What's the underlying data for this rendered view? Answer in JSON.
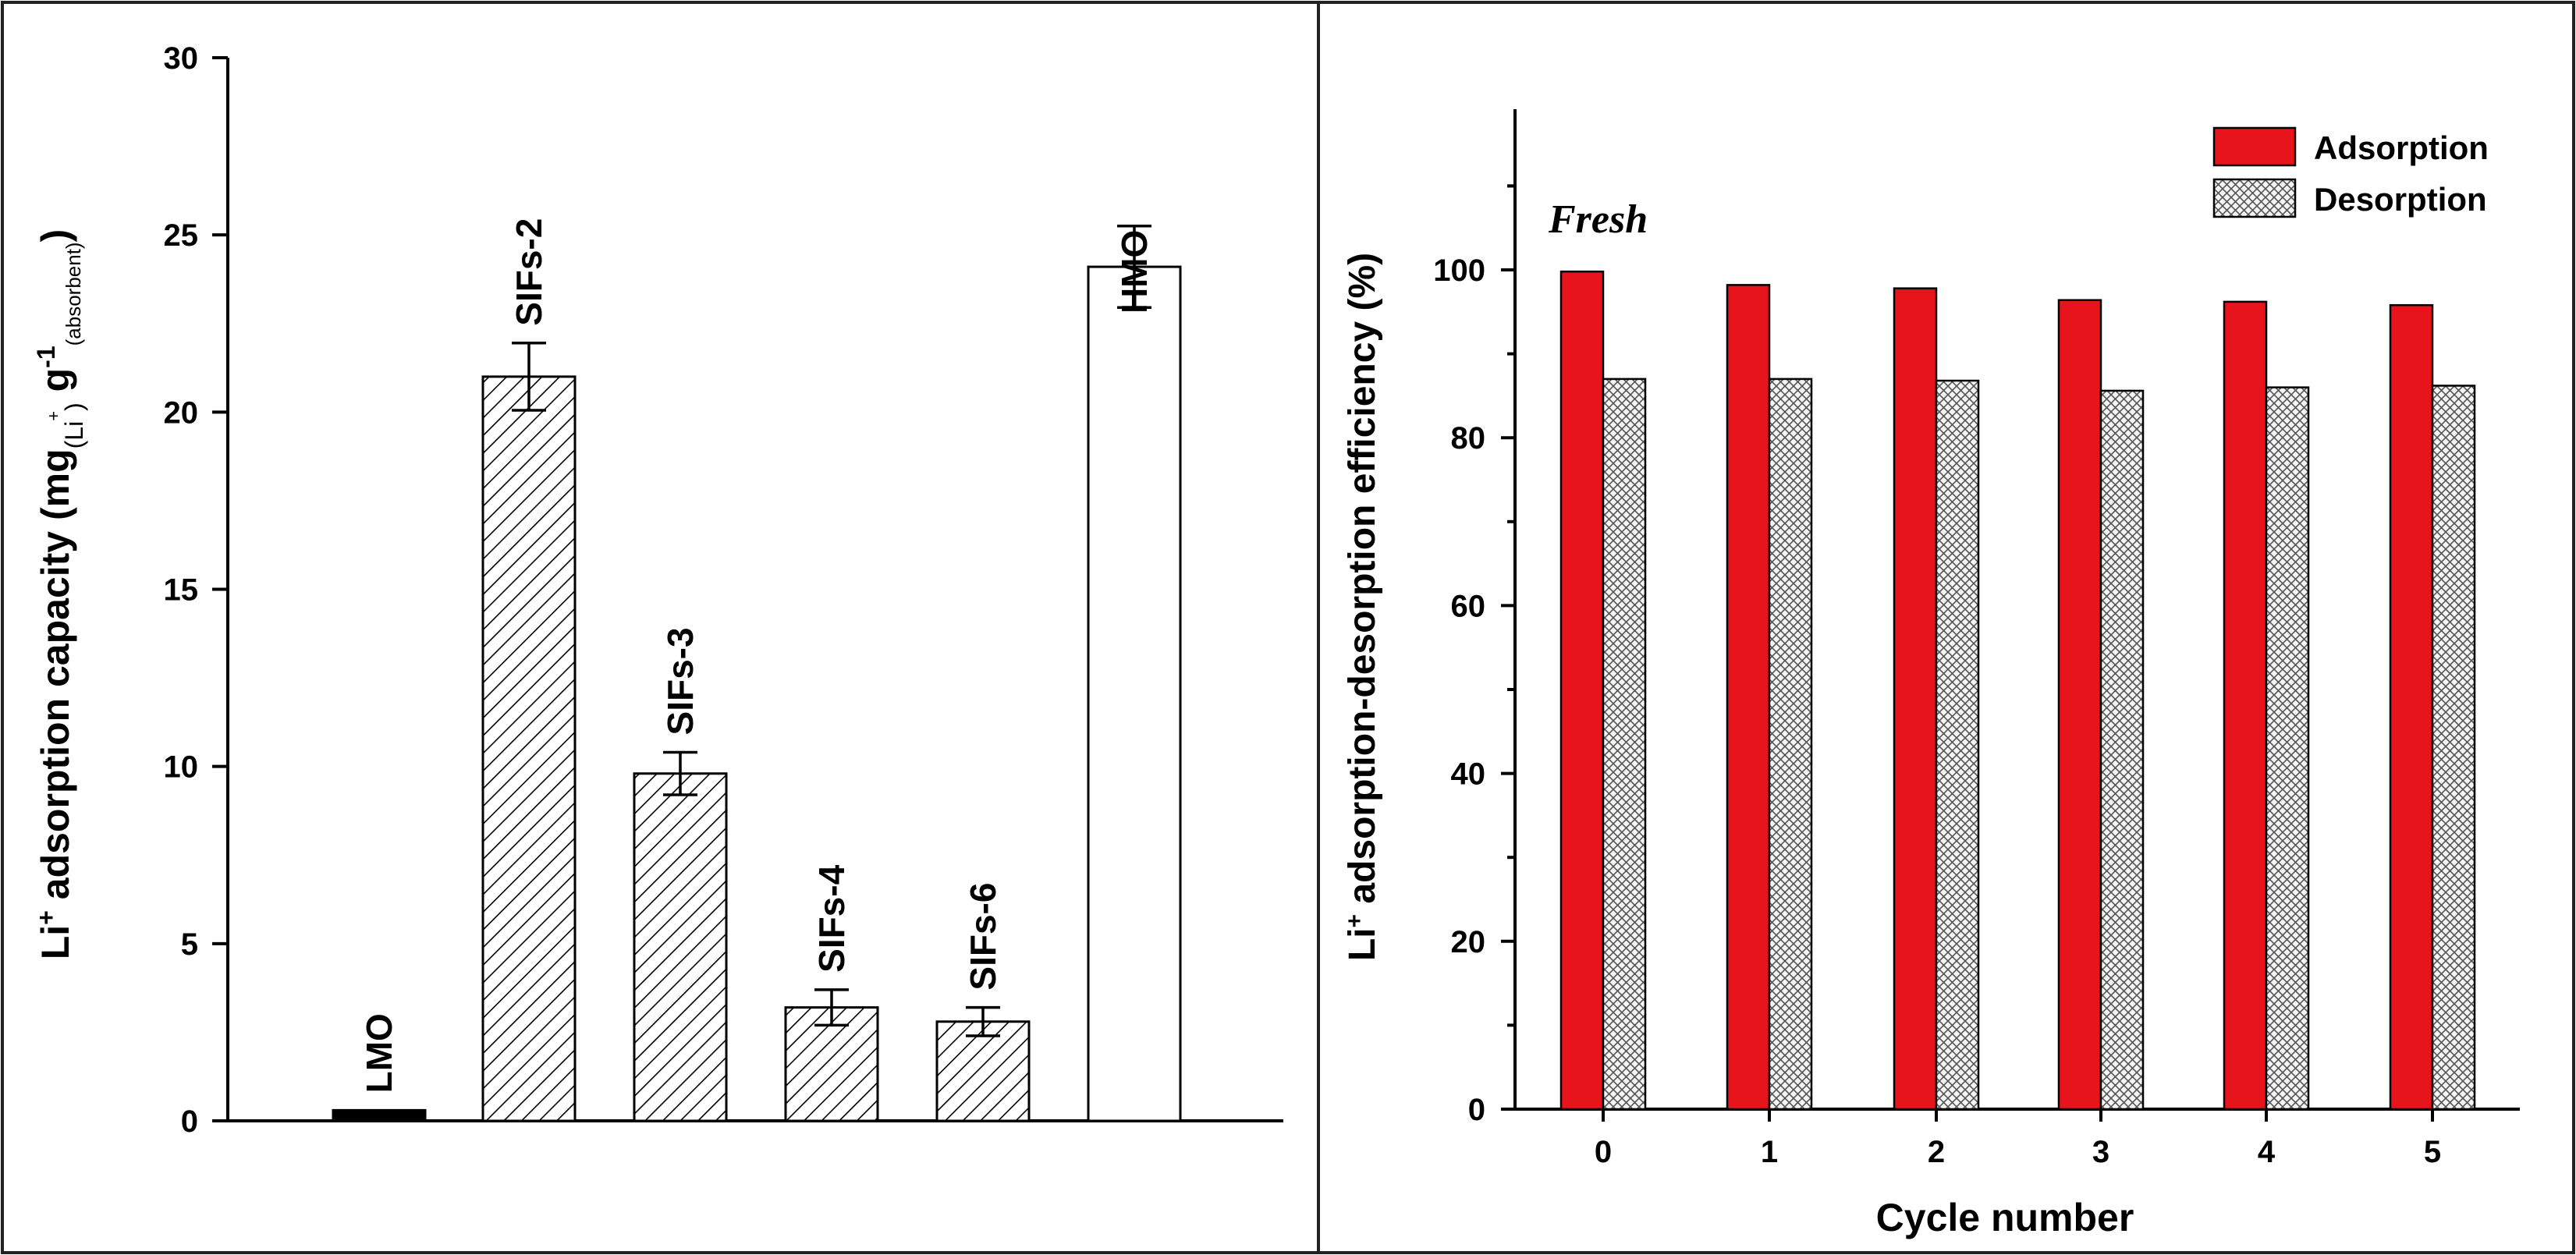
{
  "chart_data": [
    {
      "type": "bar",
      "id": "left",
      "title": "",
      "xlabel": "",
      "ylabel": {
        "prefix": "Li",
        "prefix_sup": "+",
        "main": " adsorption capacity (mg",
        "sub_mg": "(Li",
        "sub_mg_sup": "+",
        "sub_mg_close": ")",
        "g": " g",
        "g_sup": "-1",
        "sub_g": "(absorbent)",
        "close": ")"
      },
      "ylim": [
        0,
        30
      ],
      "yticks": [
        "0",
        "5",
        "10",
        "15",
        "20",
        "25",
        "30"
      ],
      "categories": [
        "LMO",
        "SIFs-2",
        "SIFs-3",
        "SIFs-4",
        "SIFs-6",
        "HMO"
      ],
      "values": [
        0.3,
        21.0,
        9.8,
        3.2,
        2.8,
        24.1
      ],
      "errors": [
        null,
        0.95,
        0.6,
        0.5,
        0.4,
        1.15
      ],
      "fills": [
        "solid",
        "hatch",
        "hatch",
        "hatch",
        "hatch",
        "empty"
      ],
      "colors": {
        "solid": "#000000",
        "hatch_line": "#000000",
        "empty": "#ffffff"
      }
    },
    {
      "type": "bar",
      "id": "right",
      "title": "",
      "xlabel": "Cycle number",
      "ylabel": {
        "prefix": "Li",
        "prefix_sup": "+",
        "main": " adsorption-desorption efficiency (%)"
      },
      "ylim": [
        0,
        120
      ],
      "yticks": [
        "0",
        "20",
        "40",
        "60",
        "80",
        "100"
      ],
      "categories": [
        "0",
        "1",
        "2",
        "3",
        "4",
        "5"
      ],
      "annotation": "Fresh",
      "series": [
        {
          "name": "Adsorption",
          "values": [
            99.8,
            98.2,
            97.8,
            96.4,
            96.2,
            95.8
          ],
          "color": "#e8141b",
          "fill": "solid"
        },
        {
          "name": "Desorption",
          "values": [
            87.0,
            87.0,
            86.8,
            85.6,
            86.0,
            86.2
          ],
          "color": "#9e9e9e",
          "fill": "crosshatch"
        }
      ],
      "legend": "top-right"
    }
  ]
}
